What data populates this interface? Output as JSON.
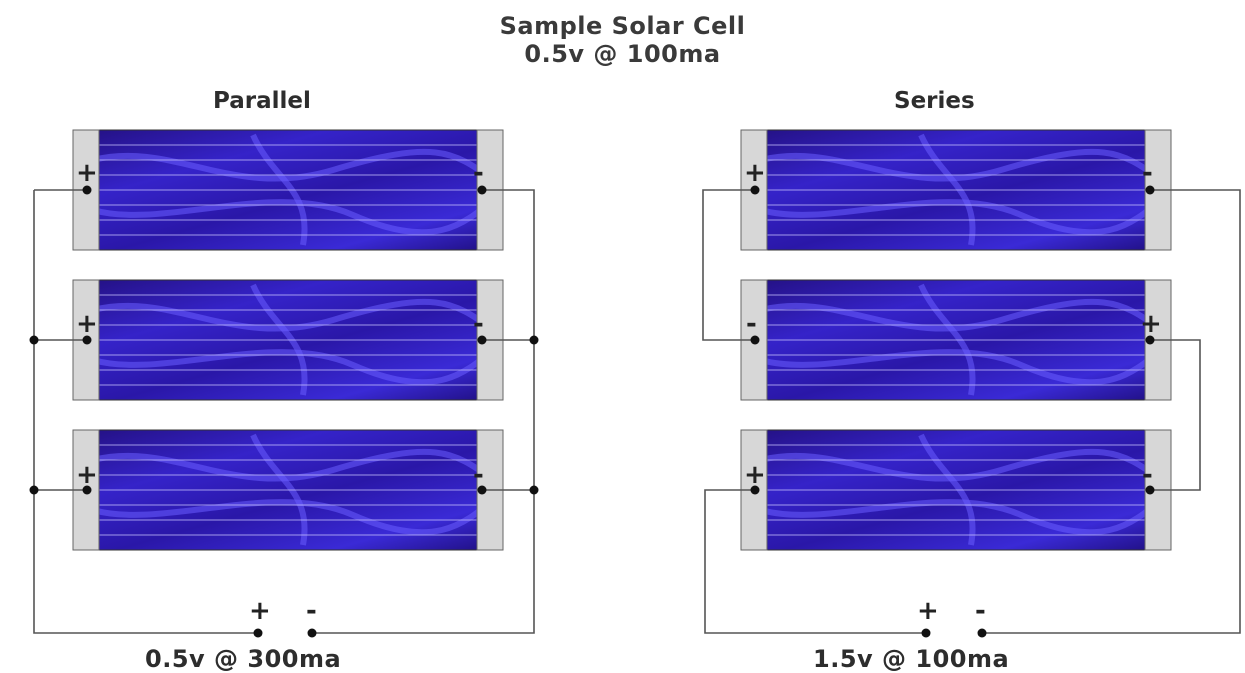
{
  "title": {
    "line1": "Sample Solar Cell",
    "line2": "0.5v @ 100ma"
  },
  "parallel": {
    "heading": "Parallel",
    "cells": [
      {
        "left_terminal": "+",
        "right_terminal": "-"
      },
      {
        "left_terminal": "+",
        "right_terminal": "-"
      },
      {
        "left_terminal": "+",
        "right_terminal": "-"
      }
    ],
    "output_positive": "+",
    "output_negative": "-",
    "output_rating": "0.5v @ 300ma"
  },
  "series": {
    "heading": "Series",
    "cells": [
      {
        "left_terminal": "+",
        "right_terminal": "-"
      },
      {
        "left_terminal": "-",
        "right_terminal": "+"
      },
      {
        "left_terminal": "+",
        "right_terminal": "-"
      }
    ],
    "output_positive": "+",
    "output_negative": "-",
    "output_rating": "1.5v @ 100ma"
  },
  "colors": {
    "cell_dark": "#1c0c8a",
    "cell_light": "#6a5cff",
    "electrode": "#d7d7d7",
    "wire": "#555555"
  }
}
